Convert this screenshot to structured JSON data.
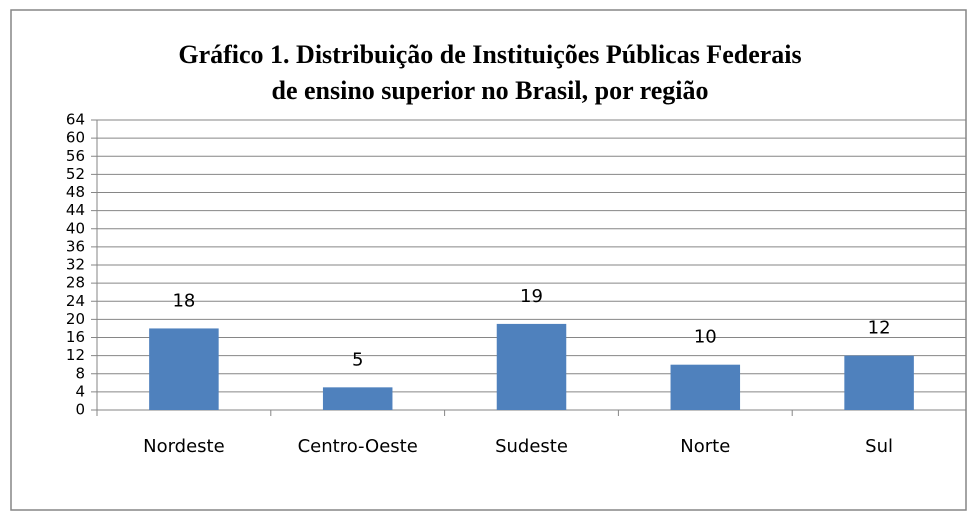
{
  "chart_data": {
    "type": "bar",
    "title": [
      "Gráfico 1. Distribuição de Instituições Públicas Federais",
      "de ensino superior no Brasil, por região"
    ],
    "categories": [
      "Nordeste",
      "Centro-Oeste",
      "Sudeste",
      "Norte",
      "Sul"
    ],
    "values": [
      18,
      5,
      19,
      10,
      12
    ],
    "color": "#4f81bd",
    "ylim": [
      0,
      64
    ],
    "yticks": [
      0,
      4,
      8,
      12,
      16,
      20,
      24,
      28,
      32,
      36,
      40,
      44,
      48,
      52,
      56,
      60,
      64
    ],
    "grid": true,
    "data_labels": true
  }
}
